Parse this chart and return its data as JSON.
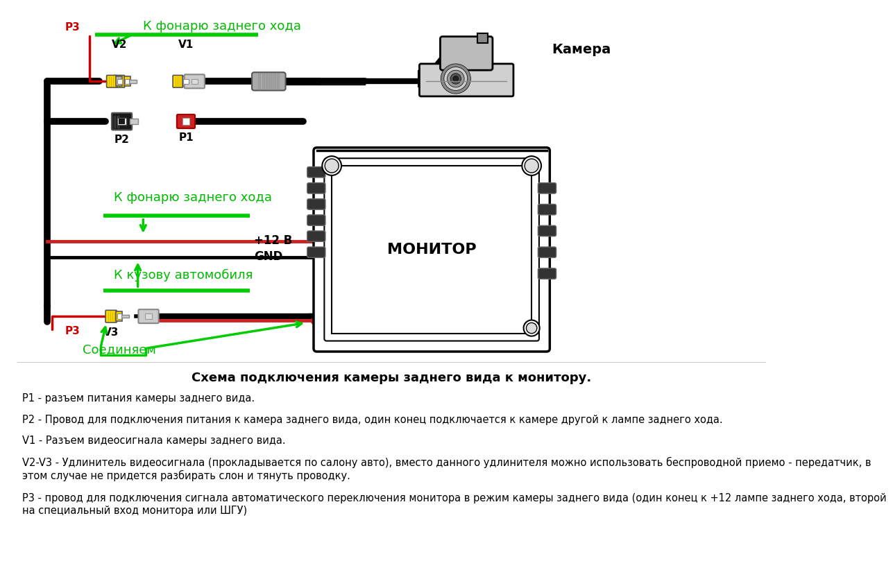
{
  "bg_color": "#ffffff",
  "green_label1": "К фонарю заднего хода",
  "green_label2": "К фонарю заднего хода",
  "green_label3": "К кузову автомобиля",
  "green_label4": "Соединяем",
  "camera_label": "Камера",
  "monitor_label": "МОНИТОР",
  "plus12_label": "+12 В",
  "gnd_label": "GND",
  "p1_label": "P1",
  "p2_label": "P2",
  "p3_label": "P3",
  "v1_label": "V1",
  "v2_label": "V2",
  "v3_label": "V3",
  "desc_title": "Схема подключения камеры заднего вида к монитору.",
  "desc1": "P1 - разъем питания камеры заднего вида.",
  "desc2": "P2 - Провод для подключения питания к камера заднего вида, один конец подключается к камере другой к лампе заднего хода.",
  "desc3": "V1 - Разъем видеосигнала камеры заднего вида.",
  "desc4": "V2-V3 - Удлинитель видеосигнала (прокладывается по салону авто), вместо данного удлинителя можно использовать беспроводной приемо - передатчик, в\nэтом случае не придется разбирать слон и тянуть проводку.",
  "desc5": "Р3 - провод для подключения сигнала автоматического переключения монитора в режим камеры заднего вида (один конец к +12 лампе заднего хода, второй\nна специальный вход монитора или ШГУ)"
}
